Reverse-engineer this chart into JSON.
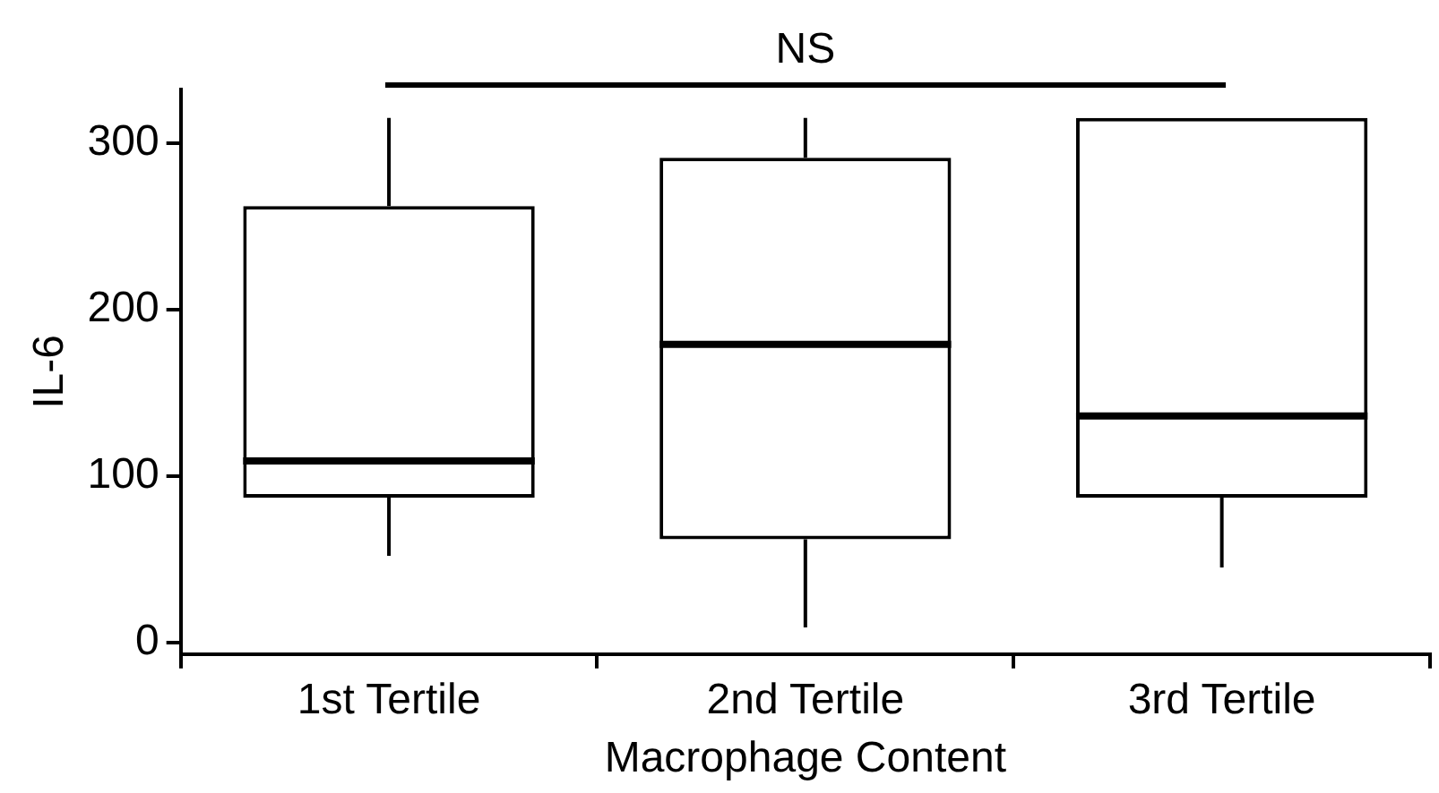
{
  "chart_data": {
    "type": "box",
    "xlabel": "Macrophage Content",
    "ylabel": "IL-6",
    "categories": [
      "1st Tertile",
      "2nd Tertile",
      "3rd Tertile"
    ],
    "boxes": [
      {
        "low": 52,
        "q1": 87,
        "median": 109,
        "q3": 262,
        "high": 315
      },
      {
        "low": 9,
        "q1": 62,
        "median": 179,
        "q3": 291,
        "high": 315
      },
      {
        "low": 45,
        "q1": 87,
        "median": 136,
        "q3": 315,
        "high": 315
      }
    ],
    "ylim": [
      -7,
      332
    ],
    "yticks": [
      0,
      100,
      200,
      300
    ],
    "grid": false,
    "legend": false,
    "annotations": [
      "NS"
    ]
  }
}
